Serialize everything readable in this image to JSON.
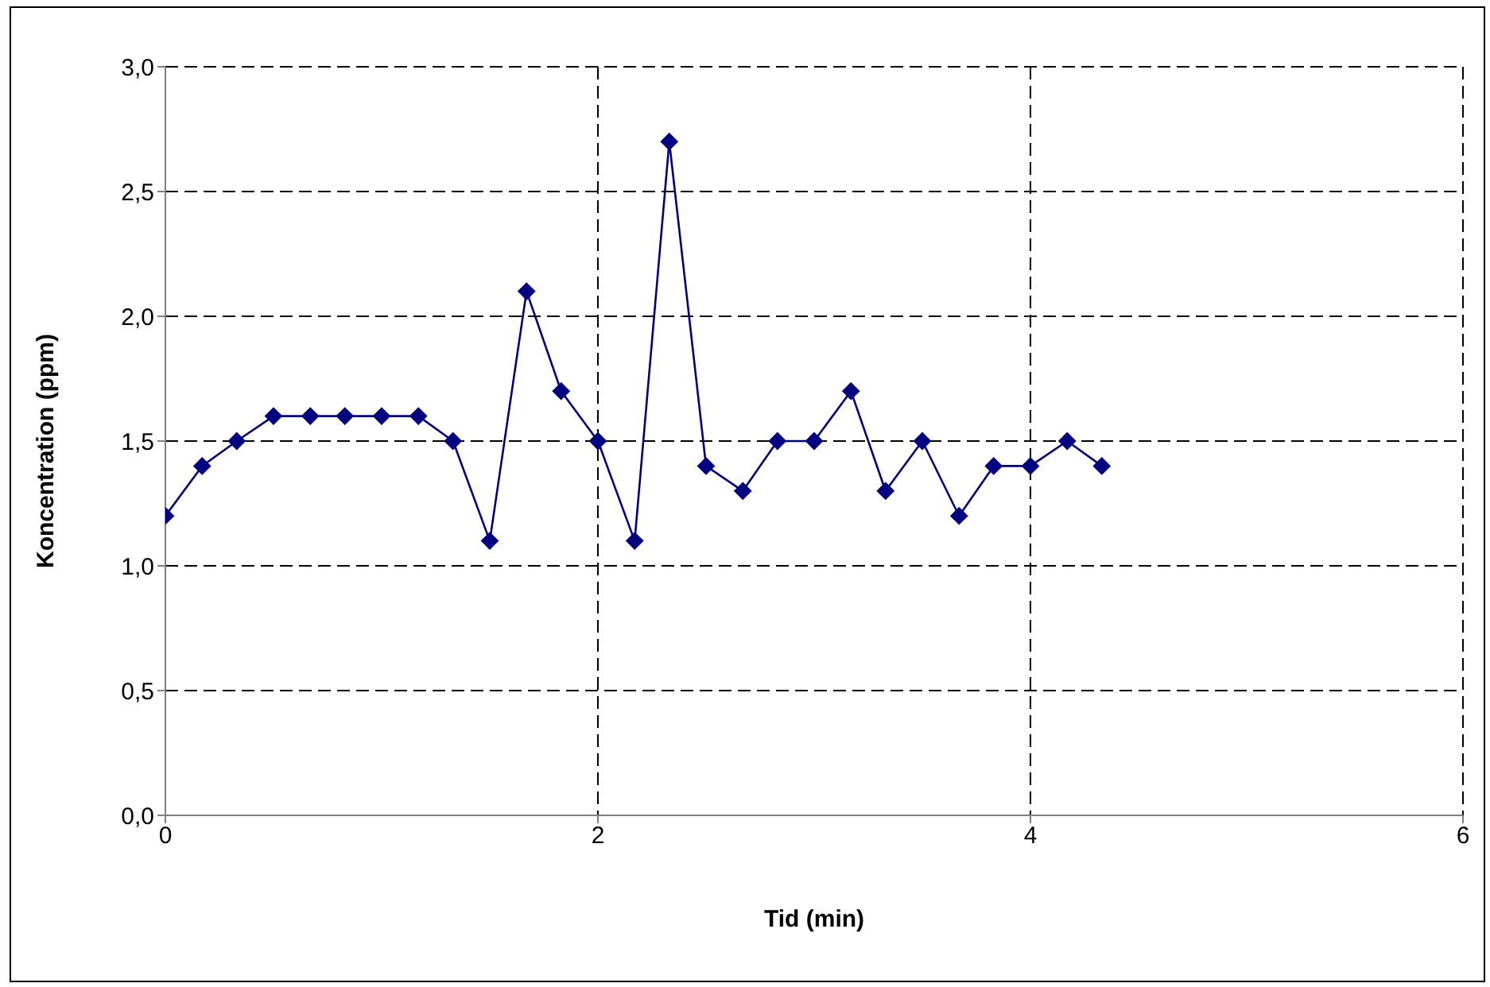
{
  "chart_data": {
    "type": "line",
    "xlabel": "Tid (min)",
    "ylabel": "Koncentration (ppm)",
    "x": [
      0,
      0.17,
      0.33,
      0.5,
      0.67,
      0.83,
      1,
      1.17,
      1.33,
      1.5,
      1.67,
      1.83,
      2,
      2.17,
      2.33,
      2.5,
      2.67,
      2.83,
      3,
      3.17,
      3.33,
      3.5,
      3.67,
      3.83,
      4,
      4.17,
      4.33
    ],
    "series": [
      {
        "color": "#000080",
        "values": [
          1.2,
          1.4,
          1.5,
          1.6,
          1.6,
          1.6,
          1.6,
          1.6,
          1.5,
          1.1,
          2.1,
          1.7,
          1.5,
          1.1,
          2.7,
          1.4,
          1.3,
          1.5,
          1.5,
          1.7,
          1.3,
          1.5,
          1.2,
          1.4,
          1.4,
          1.5,
          1.4
        ]
      }
    ],
    "xlim": [
      0,
      6
    ],
    "xticks": [
      0,
      2,
      4,
      6
    ],
    "ylim": [
      0,
      3
    ],
    "yticks": [
      {
        "value": 0,
        "label": "0,0"
      },
      {
        "value": 0.5,
        "label": "0,5"
      },
      {
        "value": 1,
        "label": "1,0"
      },
      {
        "value": 1.5,
        "label": "1,5"
      },
      {
        "value": 2,
        "label": "2,0"
      },
      {
        "value": 2.5,
        "label": "2,5"
      },
      {
        "value": 3,
        "label": "3,0"
      }
    ],
    "grid": true,
    "marker": "diamond",
    "line_style": "solid"
  }
}
